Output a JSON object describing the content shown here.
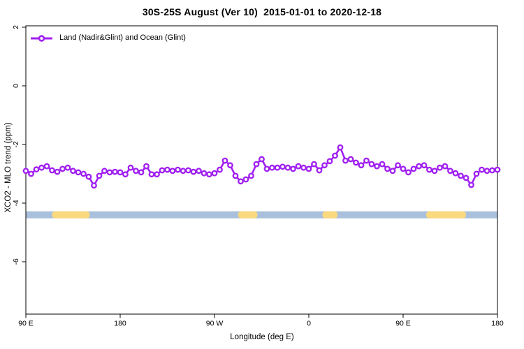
{
  "title": "30S-25S August (Ver 10)  2015-01-01 to 2020-12-18",
  "legend": {
    "label": "Land (Nadir&Glint) and Ocean (Glint)"
  },
  "axes": {
    "x": {
      "label": "Longitude (deg E)",
      "ticks": [
        {
          "value": 90,
          "label": "90 E"
        },
        {
          "value": 180,
          "label": "180"
        },
        {
          "value": 270,
          "label": "90 W"
        },
        {
          "value": 360,
          "label": "0"
        },
        {
          "value": 450,
          "label": "90 E"
        },
        {
          "value": 540,
          "label": "180"
        }
      ]
    },
    "y": {
      "label": "XCO2 - MLO trend (ppm)",
      "ticks": [
        {
          "value": 2,
          "label": "2"
        },
        {
          "value": 0,
          "label": "0"
        },
        {
          "value": -2,
          "label": "-2"
        },
        {
          "value": -4,
          "label": "-4"
        },
        {
          "value": -6,
          "label": "-6"
        }
      ]
    }
  },
  "colors": {
    "background": "#FFFFFF",
    "axis": "#000000",
    "series": "#A020F0",
    "marker_fill": "#FFFFFF",
    "land": "#FBD97E",
    "ocean": "#A9C0DC"
  },
  "chart_data": {
    "type": "line",
    "title": "30S-25S August (Ver 10)  2015-01-01 to 2020-12-18",
    "xlabel": "Longitude (deg E)",
    "ylabel": "XCO2 - MLO trend (ppm)",
    "xlim": [
      90,
      540
    ],
    "ylim": [
      -7.8,
      2.05
    ],
    "x_axis_note": "longitude wraps eastward: 90E,180,90W,0,90E,180",
    "grid": false,
    "legend_position": "top-left-inside",
    "x": [
      90,
      95,
      100,
      105,
      110,
      115,
      120,
      125,
      130,
      135,
      140,
      145,
      150,
      155,
      160,
      165,
      170,
      175,
      180,
      185,
      190,
      195,
      200,
      205,
      210,
      215,
      220,
      225,
      230,
      235,
      240,
      245,
      250,
      255,
      260,
      265,
      270,
      275,
      280,
      285,
      290,
      295,
      300,
      305,
      310,
      315,
      320,
      325,
      330,
      335,
      340,
      345,
      350,
      355,
      360,
      365,
      370,
      375,
      380,
      385,
      390,
      395,
      400,
      405,
      410,
      415,
      420,
      425,
      430,
      435,
      440,
      445,
      450,
      455,
      460,
      465,
      470,
      475,
      480,
      485,
      490,
      495,
      500,
      505,
      510,
      515,
      520,
      525,
      530,
      535,
      540
    ],
    "series": [
      {
        "name": "Land (Nadir&Glint) and Ocean (Glint)",
        "color": "#A020F0",
        "marker": "open-circle",
        "values": [
          -2.9,
          -3.0,
          -2.85,
          -2.79,
          -2.74,
          -2.88,
          -2.93,
          -2.83,
          -2.79,
          -2.9,
          -2.95,
          -3.0,
          -3.1,
          -3.4,
          -3.07,
          -2.9,
          -2.95,
          -2.93,
          -2.95,
          -3.02,
          -2.79,
          -2.9,
          -2.95,
          -2.74,
          -3.02,
          -3.02,
          -2.88,
          -2.86,
          -2.9,
          -2.86,
          -2.9,
          -2.88,
          -2.93,
          -2.9,
          -2.98,
          -3.02,
          -2.98,
          -2.86,
          -2.55,
          -2.71,
          -3.07,
          -3.26,
          -3.19,
          -3.07,
          -2.67,
          -2.5,
          -2.83,
          -2.79,
          -2.79,
          -2.76,
          -2.79,
          -2.83,
          -2.74,
          -2.79,
          -2.83,
          -2.67,
          -2.88,
          -2.71,
          -2.57,
          -2.38,
          -2.1,
          -2.55,
          -2.5,
          -2.62,
          -2.71,
          -2.55,
          -2.67,
          -2.74,
          -2.67,
          -2.83,
          -2.9,
          -2.71,
          -2.83,
          -2.95,
          -2.83,
          -2.74,
          -2.71,
          -2.86,
          -2.9,
          -2.79,
          -2.74,
          -2.9,
          -2.98,
          -3.07,
          -3.14,
          -3.38,
          -3.0,
          -2.86,
          -2.9,
          -2.88,
          -2.86
        ]
      }
    ],
    "surface_band": {
      "description": "land(yellow)/ocean(blue) strip along longitude",
      "y_range": [
        -4.52,
        -4.28
      ],
      "ocean_color": "#A9C0DC",
      "land_color": "#FBD97E",
      "ocean_range": [
        90,
        540
      ],
      "land_segments": [
        [
          115,
          151
        ],
        [
          292.5,
          311
        ],
        [
          373,
          387.5
        ],
        [
          472,
          510
        ]
      ]
    }
  }
}
